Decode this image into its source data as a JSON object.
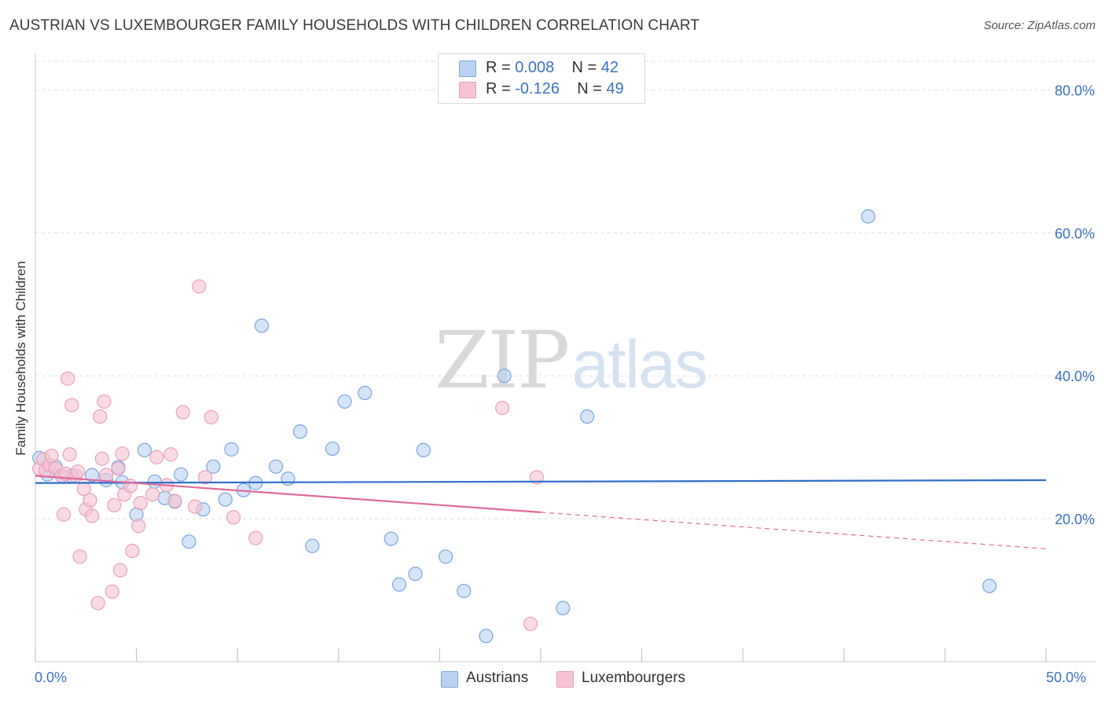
{
  "header": {
    "title": "AUSTRIAN VS LUXEMBOURGER FAMILY HOUSEHOLDS WITH CHILDREN CORRELATION CHART",
    "source": "Source: ZipAtlas.com"
  },
  "watermark": {
    "zip": "ZIP",
    "atlas": "atlas"
  },
  "legend_top": {
    "rows": [
      {
        "r_label": "R =",
        "r_value": "0.008",
        "n_label": "N =",
        "n_value": "42"
      },
      {
        "r_label": "R =",
        "r_value": "-0.126",
        "n_label": "N =",
        "n_value": "49"
      }
    ]
  },
  "legend_bottom": {
    "items": [
      "Austrians",
      "Luxembourgers"
    ]
  },
  "x_ticks": {
    "left": "0.0%",
    "right": "50.0%"
  },
  "colors": {
    "blue_fill": "#b9d2f0",
    "blue_stroke": "#7aa7de",
    "blue_line": "#2f6fca",
    "pink_fill": "#f7c3d3",
    "pink_stroke": "#e9a0b8",
    "pink_line": "#e06a9a",
    "grid": "#dddddd",
    "axis_text": "#3a72c4"
  },
  "chart_data": {
    "type": "scatter",
    "title": "AUSTRIAN VS LUXEMBOURGER FAMILY HOUSEHOLDS WITH CHILDREN CORRELATION CHART",
    "xlabel": "",
    "ylabel": "Family Households with Children",
    "xlim": [
      0,
      50
    ],
    "ylim": [
      0,
      84
    ],
    "y_ticks": [
      20,
      40,
      60,
      80
    ],
    "y_tick_labels": [
      "20.0%",
      "40.0%",
      "60.0%",
      "80.0%"
    ],
    "x_tick_labels": [
      "0.0%",
      "50.0%"
    ],
    "grid": true,
    "legend_position": "top-center",
    "series": [
      {
        "name": "Austrians",
        "r": 0.008,
        "n": 42,
        "trend": {
          "x0": 0,
          "y0": 25.0,
          "x1": 50,
          "y1": 25.4,
          "solid_until": 50
        },
        "points": [
          [
            0.2,
            28.5
          ],
          [
            0.6,
            26.2
          ],
          [
            1.0,
            27.3
          ],
          [
            1.8,
            26.0
          ],
          [
            2.8,
            26.1
          ],
          [
            3.5,
            25.4
          ],
          [
            4.1,
            27.2
          ],
          [
            4.3,
            25.1
          ],
          [
            5.0,
            20.6
          ],
          [
            5.4,
            29.6
          ],
          [
            5.9,
            25.2
          ],
          [
            6.4,
            22.9
          ],
          [
            6.9,
            22.4
          ],
          [
            7.2,
            26.2
          ],
          [
            7.6,
            16.8
          ],
          [
            8.3,
            21.3
          ],
          [
            8.8,
            27.3
          ],
          [
            9.4,
            22.7
          ],
          [
            9.7,
            29.7
          ],
          [
            10.3,
            24.0
          ],
          [
            10.9,
            25.0
          ],
          [
            11.2,
            47.0
          ],
          [
            11.9,
            27.3
          ],
          [
            12.5,
            25.6
          ],
          [
            13.1,
            32.2
          ],
          [
            13.7,
            16.2
          ],
          [
            14.7,
            29.8
          ],
          [
            15.3,
            36.4
          ],
          [
            16.3,
            37.6
          ],
          [
            17.6,
            17.2
          ],
          [
            18.0,
            10.8
          ],
          [
            18.8,
            12.3
          ],
          [
            19.2,
            29.6
          ],
          [
            20.3,
            14.7
          ],
          [
            21.2,
            9.9
          ],
          [
            22.3,
            3.6
          ],
          [
            23.2,
            40.0
          ],
          [
            26.1,
            7.5
          ],
          [
            27.3,
            34.3
          ],
          [
            41.2,
            62.3
          ],
          [
            47.2,
            10.6
          ],
          [
            1.3,
            26.0
          ]
        ]
      },
      {
        "name": "Luxembourgers",
        "r": -0.126,
        "n": 49,
        "trend": {
          "x0": 0,
          "y0": 26.0,
          "x1": 50,
          "y1": 15.8,
          "solid_until": 25
        },
        "points": [
          [
            0.2,
            27.0
          ],
          [
            0.4,
            28.3
          ],
          [
            0.5,
            26.8
          ],
          [
            0.7,
            27.5
          ],
          [
            0.8,
            28.8
          ],
          [
            1.0,
            27.0
          ],
          [
            1.3,
            26.0
          ],
          [
            1.5,
            26.3
          ],
          [
            1.4,
            20.6
          ],
          [
            1.6,
            39.6
          ],
          [
            1.7,
            29.0
          ],
          [
            1.8,
            35.9
          ],
          [
            2.0,
            26.0
          ],
          [
            2.1,
            26.6
          ],
          [
            2.2,
            14.7
          ],
          [
            2.4,
            24.2
          ],
          [
            2.5,
            21.3
          ],
          [
            2.7,
            22.6
          ],
          [
            2.8,
            20.4
          ],
          [
            3.1,
            8.2
          ],
          [
            3.2,
            34.3
          ],
          [
            3.3,
            28.4
          ],
          [
            3.5,
            26.1
          ],
          [
            3.4,
            36.4
          ],
          [
            3.8,
            9.8
          ],
          [
            3.9,
            21.9
          ],
          [
            4.1,
            27.0
          ],
          [
            4.2,
            12.8
          ],
          [
            4.3,
            29.1
          ],
          [
            4.4,
            23.4
          ],
          [
            4.7,
            24.6
          ],
          [
            4.8,
            15.5
          ],
          [
            5.1,
            19.0
          ],
          [
            5.2,
            22.2
          ],
          [
            5.8,
            23.4
          ],
          [
            6.0,
            28.6
          ],
          [
            6.5,
            24.7
          ],
          [
            6.7,
            29.0
          ],
          [
            6.9,
            22.5
          ],
          [
            7.3,
            34.9
          ],
          [
            7.9,
            21.7
          ],
          [
            8.1,
            52.5
          ],
          [
            8.4,
            25.8
          ],
          [
            8.7,
            34.2
          ],
          [
            9.8,
            20.2
          ],
          [
            10.9,
            17.3
          ],
          [
            23.1,
            35.5
          ],
          [
            24.5,
            5.3
          ],
          [
            24.8,
            25.8
          ]
        ]
      }
    ]
  }
}
